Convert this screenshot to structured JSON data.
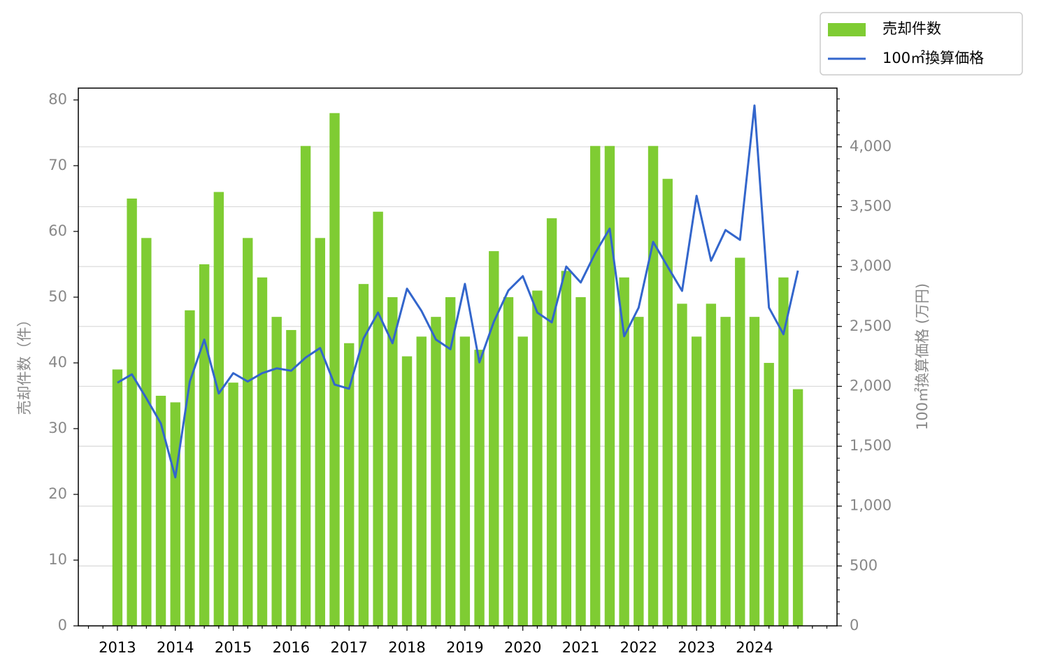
{
  "chart_data": {
    "type": "bar_line",
    "categories": [
      "2013",
      null,
      null,
      null,
      "2014",
      null,
      null,
      null,
      "2015",
      null,
      null,
      null,
      "2016",
      null,
      null,
      null,
      "2017",
      null,
      null,
      null,
      "2018",
      null,
      null,
      null,
      "2019",
      null,
      null,
      null,
      "2020",
      null,
      null,
      null,
      "2021",
      null,
      null,
      null,
      "2022",
      null,
      null,
      null,
      "2023",
      null,
      null,
      null,
      "2024",
      null,
      null,
      null
    ],
    "series": [
      {
        "name": "売却件数",
        "type": "bar",
        "color": "#7fcc33",
        "values": [
          39,
          65,
          59,
          35,
          34,
          48,
          55,
          66,
          37,
          59,
          53,
          47,
          45,
          73,
          59,
          78,
          43,
          52,
          63,
          50,
          41,
          44,
          47,
          50,
          44,
          42,
          57,
          50,
          44,
          51,
          62,
          54,
          50,
          73,
          73,
          53,
          47,
          73,
          68,
          49,
          44,
          49,
          47,
          56,
          47,
          40,
          53,
          36
        ]
      },
      {
        "name": "100㎡換算価格",
        "type": "line",
        "axis": "y2",
        "color": "#3366cc",
        "values": [
          2030,
          2100,
          1900,
          1690,
          1240,
          2040,
          2390,
          1940,
          2110,
          2040,
          2110,
          2150,
          2130,
          2240,
          2320,
          2015,
          1980,
          2400,
          2616,
          2360,
          2815,
          2630,
          2390,
          2310,
          2855,
          2200,
          2540,
          2800,
          2920,
          2616,
          2534,
          3000,
          2867,
          3112,
          3317,
          2418,
          2657,
          3206,
          3000,
          2797,
          3591,
          3048,
          3305,
          3223,
          4345,
          2657,
          2435,
          2966
        ]
      }
    ],
    "ylabel": "売却件数（件）",
    "y2label": "100㎡換算価格 (万円)",
    "ylim": [
      0,
      81.8
    ],
    "yticks": [
      0,
      10,
      20,
      30,
      40,
      50,
      60,
      70,
      80
    ],
    "y2lim": [
      0,
      4490
    ],
    "y2ticks": [
      0,
      500,
      {
        "value": 1000,
        "label": "1,000"
      },
      {
        "value": 1500,
        "label": "1,500"
      },
      {
        "value": 2000,
        "label": "2,000"
      },
      {
        "value": 2500,
        "label": "2,500"
      },
      {
        "value": 3000,
        "label": "3,000"
      },
      {
        "value": 3500,
        "label": "3,500"
      },
      {
        "value": 4000,
        "label": "4,000"
      }
    ],
    "grid": "y2",
    "legend": "top-right"
  }
}
